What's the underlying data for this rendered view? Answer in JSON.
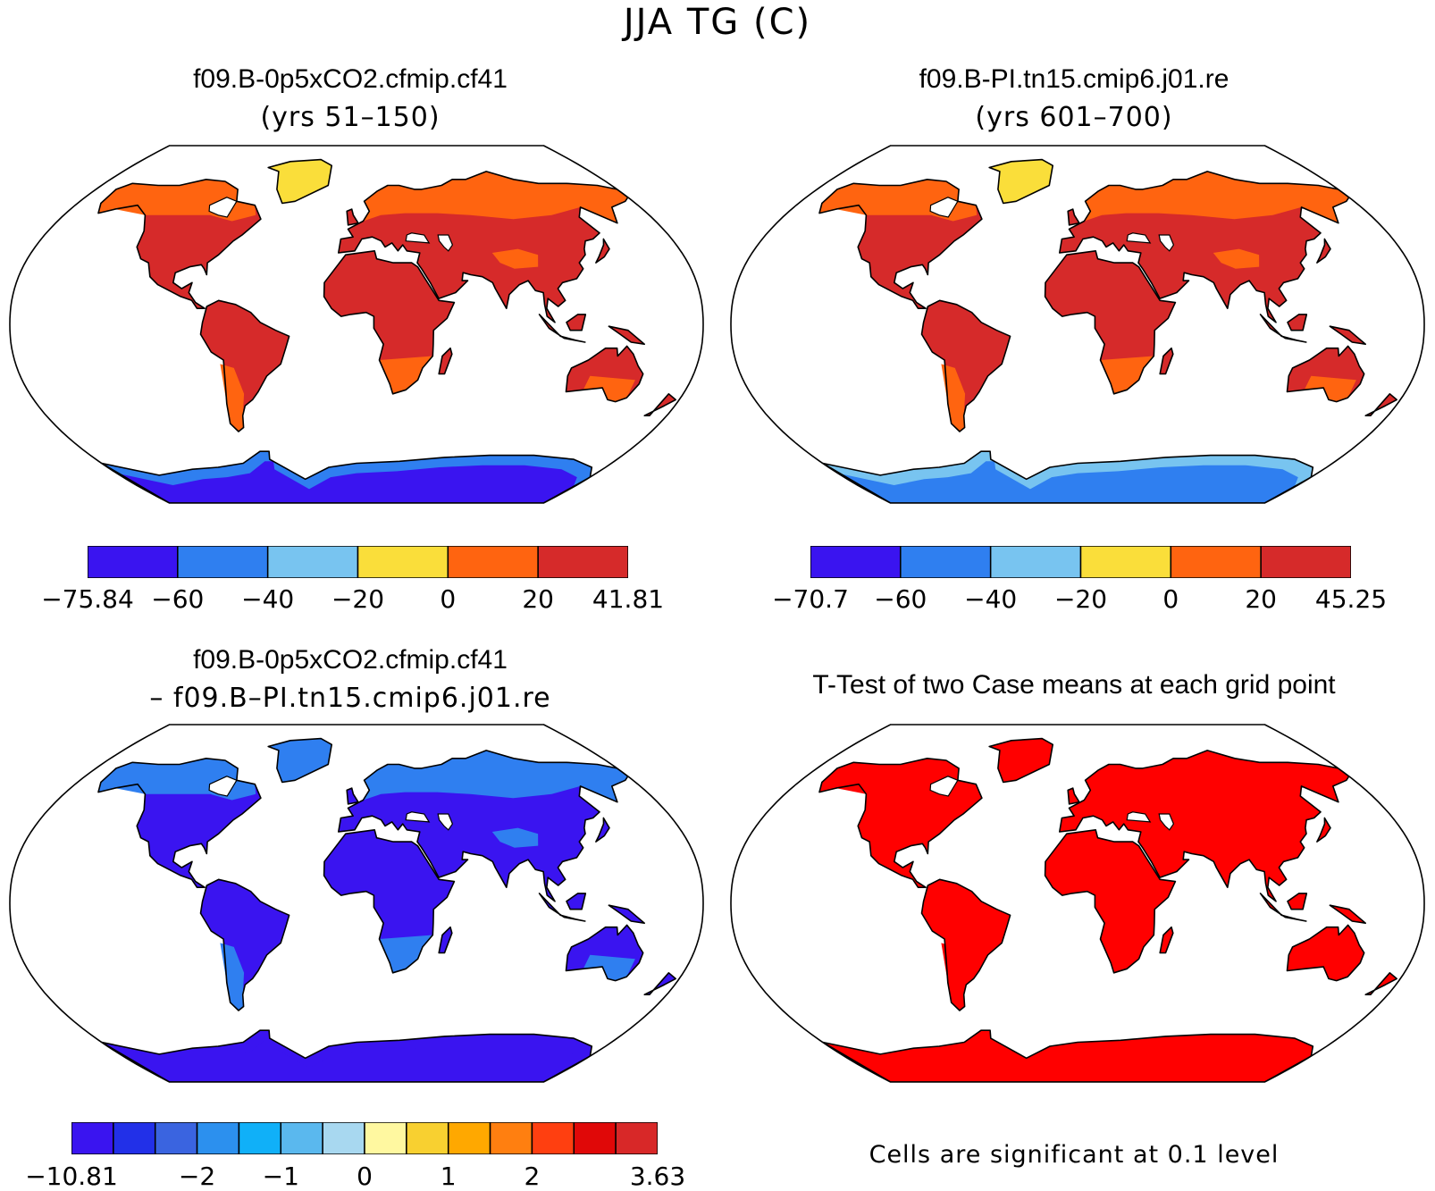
{
  "figure": {
    "title": "JJA TG (C)"
  },
  "panels": {
    "a": {
      "title": "f09.B-0p5xCO2.cfmip.cf41",
      "subtitle": "(yrs 51–150)"
    },
    "b": {
      "title": "f09.B-PI.tn15.cmip6.j01.re",
      "subtitle": "(yrs 601–700)"
    },
    "c": {
      "title": "f09.B-0p5xCO2.cfmip.cf41",
      "subtitle": "– f09.B–PI.tn15.cmip6.j01.re"
    },
    "d": {
      "title": "T-Test of two Case means at each grid point",
      "note": "Cells are significant at 0.1 level"
    }
  },
  "colorbars": {
    "a": {
      "colors": [
        "#3a14f0",
        "#2f7ff0",
        "#78c4f0",
        "#fade3a",
        "#ff6410",
        "#d62a2a"
      ],
      "labels": [
        "−75.84",
        "−60",
        "−40",
        "−20",
        "0",
        "20",
        "41.81"
      ]
    },
    "b": {
      "colors": [
        "#3a14f0",
        "#2f7ff0",
        "#78c4f0",
        "#fade3a",
        "#ff6410",
        "#d62a2a"
      ],
      "labels": [
        "−70.7",
        "−60",
        "−40",
        "−20",
        "0",
        "20",
        "45.25"
      ]
    },
    "c": {
      "colors": [
        "#3a14f0",
        "#2230e8",
        "#3a64e0",
        "#2c90ee",
        "#10b0f8",
        "#5ab8ee",
        "#a8d8f0",
        "#fff8a0",
        "#f8d030",
        "#ffa800",
        "#ff7f10",
        "#ff3f10",
        "#e00808",
        "#d82828"
      ],
      "labels": [
        {
          "text": "−10.81",
          "at": 0
        },
        {
          "text": "−2",
          "at": 3
        },
        {
          "text": "−1",
          "at": 5
        },
        {
          "text": "0",
          "at": 7
        },
        {
          "text": "1",
          "at": 9
        },
        {
          "text": "2",
          "at": 11
        },
        {
          "text": "3.63",
          "at": 14
        }
      ]
    }
  },
  "maps": {
    "a": {
      "land_primary": "#d62a2a",
      "land_high": "#ff6410",
      "land_polar": "#fade3a",
      "antarctica": "#3a14f0",
      "antarctica_edge": "#2f7ff0"
    },
    "b": {
      "land_primary": "#d62a2a",
      "land_high": "#ff6410",
      "land_polar": "#fade3a",
      "antarctica": "#2f7ff0",
      "antarctica_edge": "#78c4f0"
    },
    "c": {
      "land_primary": "#3a14f0",
      "land_high": "#2f7ff0",
      "land_polar": "#2f7ff0",
      "antarctica": "#3a14f0",
      "antarctica_edge": "#3a14f0"
    },
    "d": {
      "land_primary": "#ff0000",
      "land_high": "#ff0000",
      "land_polar": "#ff0000",
      "antarctica": "#ff0000",
      "antarctica_edge": "#ff0000"
    }
  }
}
